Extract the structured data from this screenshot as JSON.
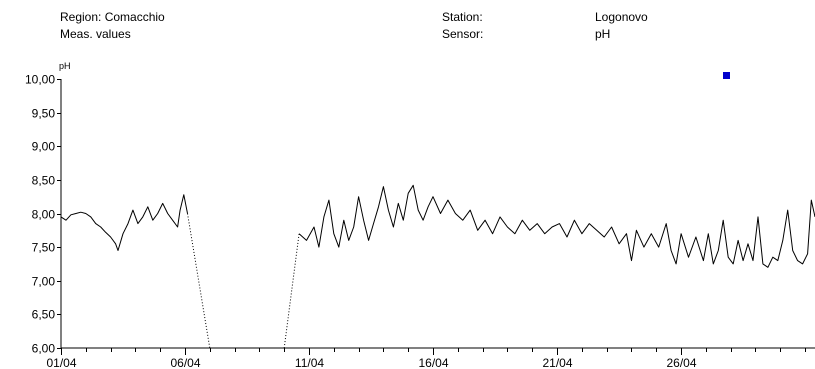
{
  "header": {
    "region": "Region: Comacchio",
    "meas": "Meas. values",
    "station_label": "Station:",
    "station_value": "Logonovo",
    "sensor_label": "Sensor:",
    "sensor_value": "pH"
  },
  "chart_data": {
    "type": "line",
    "ylabel": "pH",
    "ylim": [
      6.0,
      10.0
    ],
    "y_ticks": [
      "10,00",
      "9,50",
      "9,00",
      "8,50",
      "8,00",
      "7,50",
      "7,00",
      "6,50",
      "6,00"
    ],
    "xlim": [
      1.0,
      31.4
    ],
    "x_ticks": [
      {
        "x": 1,
        "label": "01/04"
      },
      {
        "x": 6,
        "label": "06/04"
      },
      {
        "x": 11,
        "label": "11/04"
      },
      {
        "x": 16,
        "label": "16/04"
      },
      {
        "x": 21,
        "label": "21/04"
      },
      {
        "x": 26,
        "label": "26/04"
      }
    ],
    "legend_marker_color": "#0000cc",
    "series_color": "#000000",
    "series": [
      {
        "segments": [
          {
            "style": "solid",
            "points": [
              [
                1.0,
                7.95
              ],
              [
                1.2,
                7.9
              ],
              [
                1.4,
                7.98
              ],
              [
                1.6,
                8.0
              ],
              [
                1.8,
                8.02
              ],
              [
                2.0,
                8.0
              ],
              [
                2.2,
                7.95
              ],
              [
                2.4,
                7.85
              ],
              [
                2.6,
                7.8
              ],
              [
                2.8,
                7.72
              ],
              [
                3.0,
                7.65
              ],
              [
                3.2,
                7.55
              ],
              [
                3.3,
                7.45
              ],
              [
                3.5,
                7.7
              ],
              [
                3.7,
                7.85
              ],
              [
                3.9,
                8.05
              ],
              [
                4.1,
                7.85
              ],
              [
                4.3,
                7.95
              ],
              [
                4.5,
                8.1
              ],
              [
                4.7,
                7.9
              ],
              [
                4.9,
                8.0
              ],
              [
                5.1,
                8.15
              ],
              [
                5.3,
                8.0
              ],
              [
                5.5,
                7.9
              ],
              [
                5.7,
                7.8
              ],
              [
                5.8,
                8.05
              ],
              [
                5.95,
                8.28
              ],
              [
                6.1,
                8.0
              ]
            ]
          },
          {
            "style": "dotted",
            "points": [
              [
                6.1,
                8.0
              ],
              [
                7.0,
                6.0
              ]
            ]
          },
          {
            "style": "dotted",
            "points": [
              [
                10.0,
                6.0
              ],
              [
                10.6,
                7.7
              ]
            ]
          },
          {
            "style": "solid",
            "points": [
              [
                10.6,
                7.7
              ],
              [
                10.9,
                7.6
              ],
              [
                11.2,
                7.8
              ],
              [
                11.4,
                7.5
              ],
              [
                11.6,
                7.95
              ],
              [
                11.8,
                8.2
              ],
              [
                12.0,
                7.7
              ],
              [
                12.2,
                7.5
              ],
              [
                12.4,
                7.9
              ],
              [
                12.6,
                7.6
              ],
              [
                12.8,
                7.8
              ],
              [
                13.0,
                8.25
              ],
              [
                13.2,
                7.9
              ],
              [
                13.4,
                7.6
              ],
              [
                13.6,
                7.85
              ],
              [
                13.8,
                8.1
              ],
              [
                14.0,
                8.4
              ],
              [
                14.2,
                8.05
              ],
              [
                14.4,
                7.8
              ],
              [
                14.6,
                8.15
              ],
              [
                14.8,
                7.9
              ],
              [
                15.0,
                8.3
              ],
              [
                15.2,
                8.42
              ],
              [
                15.4,
                8.05
              ],
              [
                15.6,
                7.9
              ],
              [
                15.8,
                8.1
              ],
              [
                16.0,
                8.25
              ],
              [
                16.3,
                8.0
              ],
              [
                16.6,
                8.2
              ],
              [
                16.9,
                8.0
              ],
              [
                17.2,
                7.9
              ],
              [
                17.5,
                8.05
              ],
              [
                17.8,
                7.75
              ],
              [
                18.1,
                7.9
              ],
              [
                18.4,
                7.7
              ],
              [
                18.7,
                7.95
              ],
              [
                19.0,
                7.8
              ],
              [
                19.3,
                7.7
              ],
              [
                19.6,
                7.9
              ],
              [
                19.9,
                7.75
              ],
              [
                20.2,
                7.85
              ],
              [
                20.5,
                7.7
              ],
              [
                20.8,
                7.8
              ],
              [
                21.1,
                7.85
              ],
              [
                21.4,
                7.65
              ],
              [
                21.7,
                7.9
              ],
              [
                22.0,
                7.7
              ],
              [
                22.3,
                7.85
              ],
              [
                22.6,
                7.75
              ],
              [
                22.9,
                7.65
              ],
              [
                23.2,
                7.8
              ],
              [
                23.5,
                7.55
              ],
              [
                23.8,
                7.7
              ],
              [
                24.0,
                7.3
              ],
              [
                24.2,
                7.75
              ],
              [
                24.5,
                7.5
              ],
              [
                24.8,
                7.7
              ],
              [
                25.1,
                7.5
              ],
              [
                25.4,
                7.85
              ],
              [
                25.6,
                7.45
              ],
              [
                25.8,
                7.25
              ],
              [
                26.0,
                7.7
              ],
              [
                26.3,
                7.35
              ],
              [
                26.6,
                7.65
              ],
              [
                26.9,
                7.3
              ],
              [
                27.1,
                7.7
              ],
              [
                27.3,
                7.25
              ],
              [
                27.5,
                7.45
              ],
              [
                27.7,
                7.9
              ],
              [
                27.9,
                7.35
              ],
              [
                28.1,
                7.25
              ],
              [
                28.3,
                7.6
              ],
              [
                28.5,
                7.3
              ],
              [
                28.7,
                7.55
              ],
              [
                28.9,
                7.3
              ],
              [
                29.1,
                7.95
              ],
              [
                29.3,
                7.25
              ],
              [
                29.5,
                7.2
              ],
              [
                29.7,
                7.35
              ],
              [
                29.9,
                7.3
              ],
              [
                30.1,
                7.6
              ],
              [
                30.3,
                8.05
              ],
              [
                30.5,
                7.45
              ],
              [
                30.7,
                7.3
              ],
              [
                30.9,
                7.25
              ],
              [
                31.1,
                7.4
              ],
              [
                31.25,
                8.2
              ],
              [
                31.4,
                7.95
              ]
            ]
          }
        ]
      }
    ]
  }
}
